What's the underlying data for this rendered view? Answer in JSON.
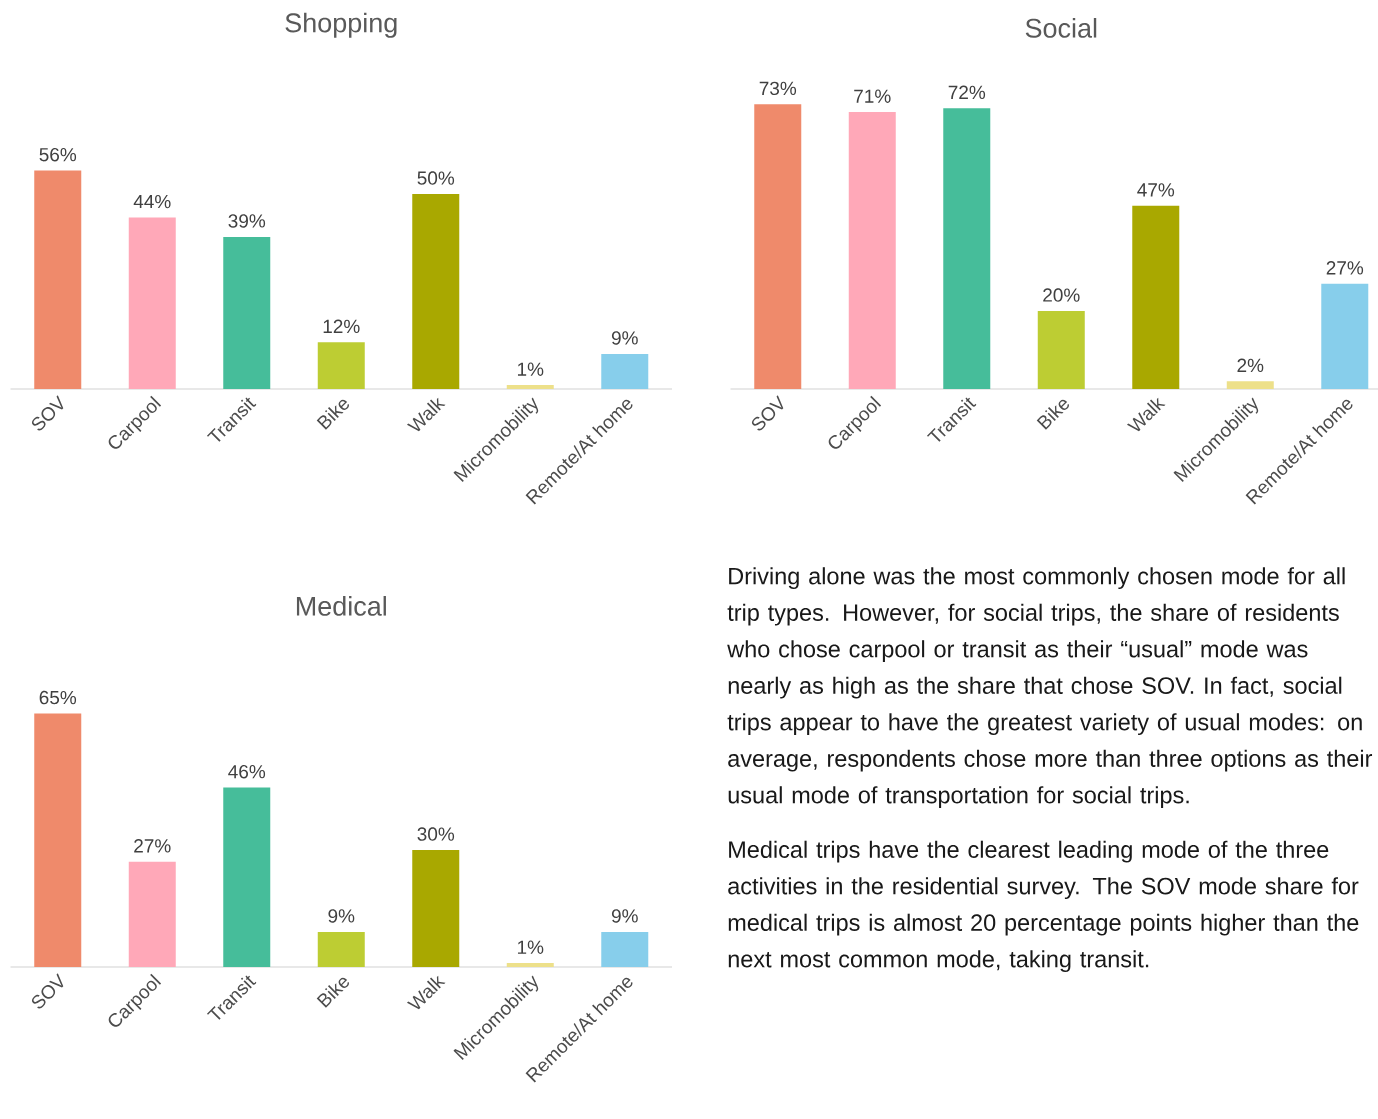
{
  "chart_data": [
    {
      "type": "bar",
      "title": "Shopping",
      "categories": [
        "SOV",
        "Carpool",
        "Transit",
        "Bike",
        "Walk",
        "Micromobility",
        "Remote/At home"
      ],
      "values": [
        56,
        44,
        39,
        12,
        50,
        1,
        9
      ],
      "value_labels": [
        "56%",
        "44%",
        "39%",
        "12%",
        "50%",
        "1%",
        "9%"
      ],
      "colors": [
        "#ef8a6b",
        "#ffa8b8",
        "#46bd9a",
        "#bdcd33",
        "#a9a800",
        "#ede08a",
        "#87ceeb"
      ]
    },
    {
      "type": "bar",
      "title": "Social",
      "categories": [
        "SOV",
        "Carpool",
        "Transit",
        "Bike",
        "Walk",
        "Micromobility",
        "Remote/At home"
      ],
      "values": [
        73,
        71,
        72,
        20,
        47,
        2,
        27
      ],
      "value_labels": [
        "73%",
        "71%",
        "72%",
        "20%",
        "47%",
        "2%",
        "27%"
      ],
      "colors": [
        "#ef8a6b",
        "#ffa8b8",
        "#46bd9a",
        "#bdcd33",
        "#a9a800",
        "#ede08a",
        "#87ceeb"
      ]
    },
    {
      "type": "bar",
      "title": "Medical",
      "categories": [
        "SOV",
        "Carpool",
        "Transit",
        "Bike",
        "Walk",
        "Micromobility",
        "Remote/At home"
      ],
      "values": [
        65,
        27,
        46,
        9,
        30,
        1,
        9
      ],
      "value_labels": [
        "65%",
        "27%",
        "46%",
        "9%",
        "30%",
        "1%",
        "9%"
      ],
      "colors": [
        "#ef8a6b",
        "#ffa8b8",
        "#46bd9a",
        "#bdcd33",
        "#a9a800",
        "#ede08a",
        "#87ceeb"
      ]
    },
    {
      "type": "other",
      "annotations": [
        "Driving alone was the most commonly chosen mode for all trip types. However, for social trips, the share of residents who chose carpool or transit as their “usual” mode was nearly as high as the share that chose SOV. In fact, social trips appear to have the greatest variety of usual modes: on average, respondents chose more than three options as their usual mode of transportation for social trips.",
        "Medical trips have the clearest leading mode of the three activities in the residential survey. The SOV mode share for medical trips is almost 20 percentage points higher than the next most common mode, taking transit."
      ]
    }
  ]
}
